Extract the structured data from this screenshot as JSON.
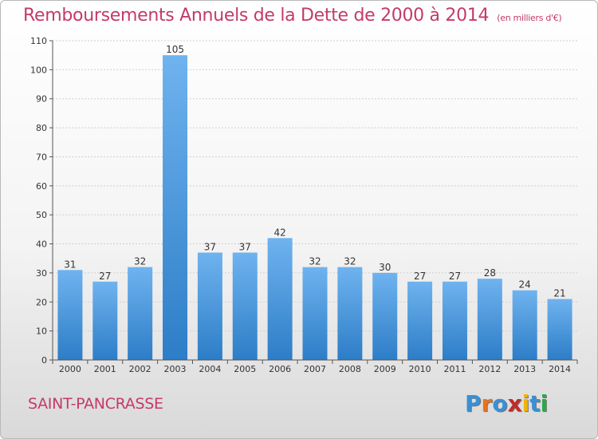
{
  "header": {
    "title": "Remboursements Annuels de la Dette de 2000 à 2014",
    "unit": "(en milliers d'€)"
  },
  "footer": {
    "commune": "SAINT-PANCRASSE",
    "logo_text": "Proxiti"
  },
  "colors": {
    "title": "#c43a6a",
    "bar_light": "#6fb3ef",
    "bar_dark": "#2d7dc7",
    "logo": [
      "#3a8fd6",
      "#e8731c",
      "#3a8fd6",
      "#c22a2a",
      "#f0b400",
      "#3a8fd6",
      "#2aa84a"
    ]
  },
  "chart_data": {
    "type": "bar",
    "title": "Remboursements Annuels de la Dette de 2000 à 2014",
    "subtitle": "(en milliers d'€)",
    "categories": [
      "2000",
      "2001",
      "2002",
      "2003",
      "2004",
      "2005",
      "2006",
      "2007",
      "2008",
      "2009",
      "2010",
      "2011",
      "2012",
      "2013",
      "2014"
    ],
    "values": [
      31,
      27,
      32,
      105,
      37,
      37,
      42,
      32,
      32,
      30,
      27,
      27,
      28,
      24,
      21
    ],
    "data_labels": [
      "31",
      "27",
      "32",
      "105",
      "37",
      "37",
      "42",
      "32",
      "32",
      "30",
      "27",
      "27",
      "28",
      "24",
      "21"
    ],
    "yticks": [
      "0",
      "10",
      "20",
      "30",
      "40",
      "50",
      "60",
      "70",
      "80",
      "90",
      "100",
      "110"
    ],
    "ylim": [
      0,
      110
    ],
    "grid": true,
    "legend": "none"
  }
}
